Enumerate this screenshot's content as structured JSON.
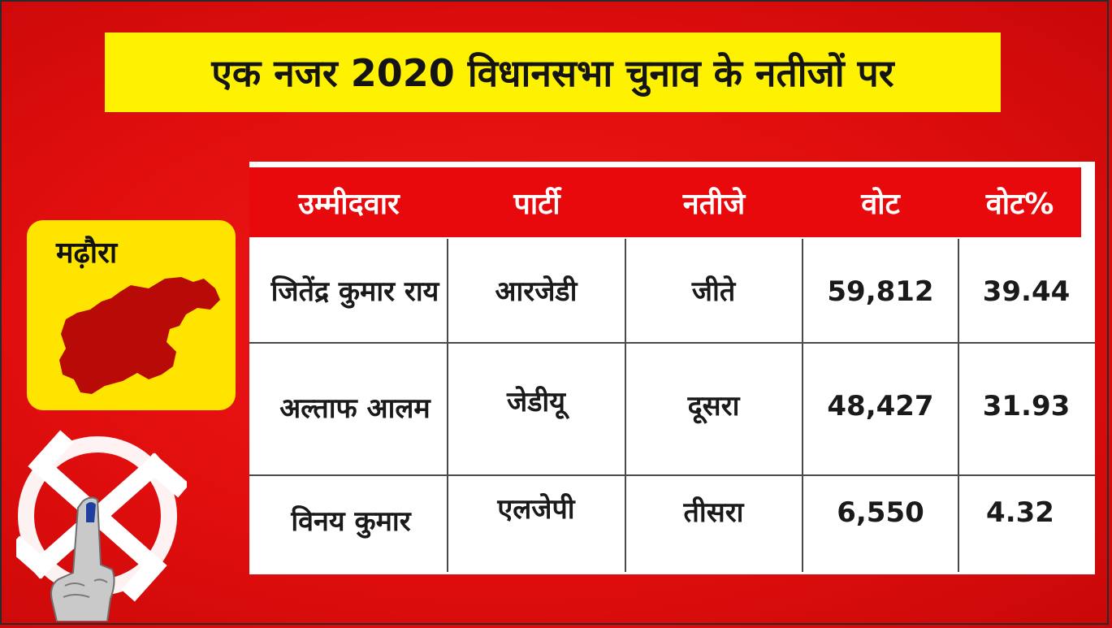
{
  "title": "एक नजर 2020 विधानसभा चुनाव के नतीजों पर",
  "constituency": "मढ़ौरा",
  "table": {
    "headers": [
      "उम्मीदवार",
      "पार्टी",
      "नतीजे",
      "वोट",
      "वोट%"
    ],
    "rows": [
      {
        "candidate": "जितेंद्र कुमार राय",
        "party": "आरजेडी",
        "result": "जीते",
        "votes": "59,812",
        "vote_pct": "39.44"
      },
      {
        "candidate": "अल्ताफ आलम",
        "party": "जेडीयू",
        "result": "दूसरा",
        "votes": "48,427",
        "vote_pct": "31.93"
      },
      {
        "candidate": "विनय कुमार",
        "party": "एलजेपी",
        "result": "तीसरा",
        "votes": "6,550",
        "vote_pct": "4.32"
      }
    ]
  },
  "colors": {
    "background": "#e10e0e",
    "banner": "#fff200",
    "header_row": "#e8090d",
    "map_card": "#ffe400",
    "map_region": "#b80a06"
  },
  "icons": [
    "constituency-map-icon",
    "election-swastika-symbol-icon",
    "inked-finger-icon"
  ]
}
